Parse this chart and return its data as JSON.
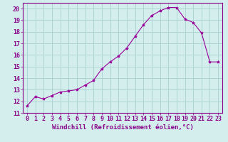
{
  "x": [
    0,
    1,
    2,
    3,
    4,
    5,
    6,
    7,
    8,
    9,
    10,
    11,
    12,
    13,
    14,
    15,
    16,
    17,
    18,
    19,
    20,
    21,
    22,
    23
  ],
  "y": [
    11.6,
    12.4,
    12.2,
    12.5,
    12.8,
    12.9,
    13.0,
    13.4,
    13.8,
    14.8,
    15.4,
    15.9,
    16.6,
    17.6,
    18.6,
    19.4,
    19.8,
    20.1,
    20.1,
    19.1,
    18.8,
    17.9,
    15.4,
    15.4
  ],
  "line_color": "#990099",
  "marker": "*",
  "marker_size": 3,
  "xlabel": "Windchill (Refroidissement éolien,°C)",
  "ylabel_ticks": [
    11,
    12,
    13,
    14,
    15,
    16,
    17,
    18,
    19,
    20
  ],
  "xlim": [
    -0.5,
    23.5
  ],
  "ylim": [
    11,
    20.5
  ],
  "background_color": "#d4eeee",
  "grid_color": "#aed4d4",
  "xlabel_fontsize": 6.5,
  "tick_fontsize": 6,
  "label_color": "#880088",
  "spine_color": "#880088"
}
